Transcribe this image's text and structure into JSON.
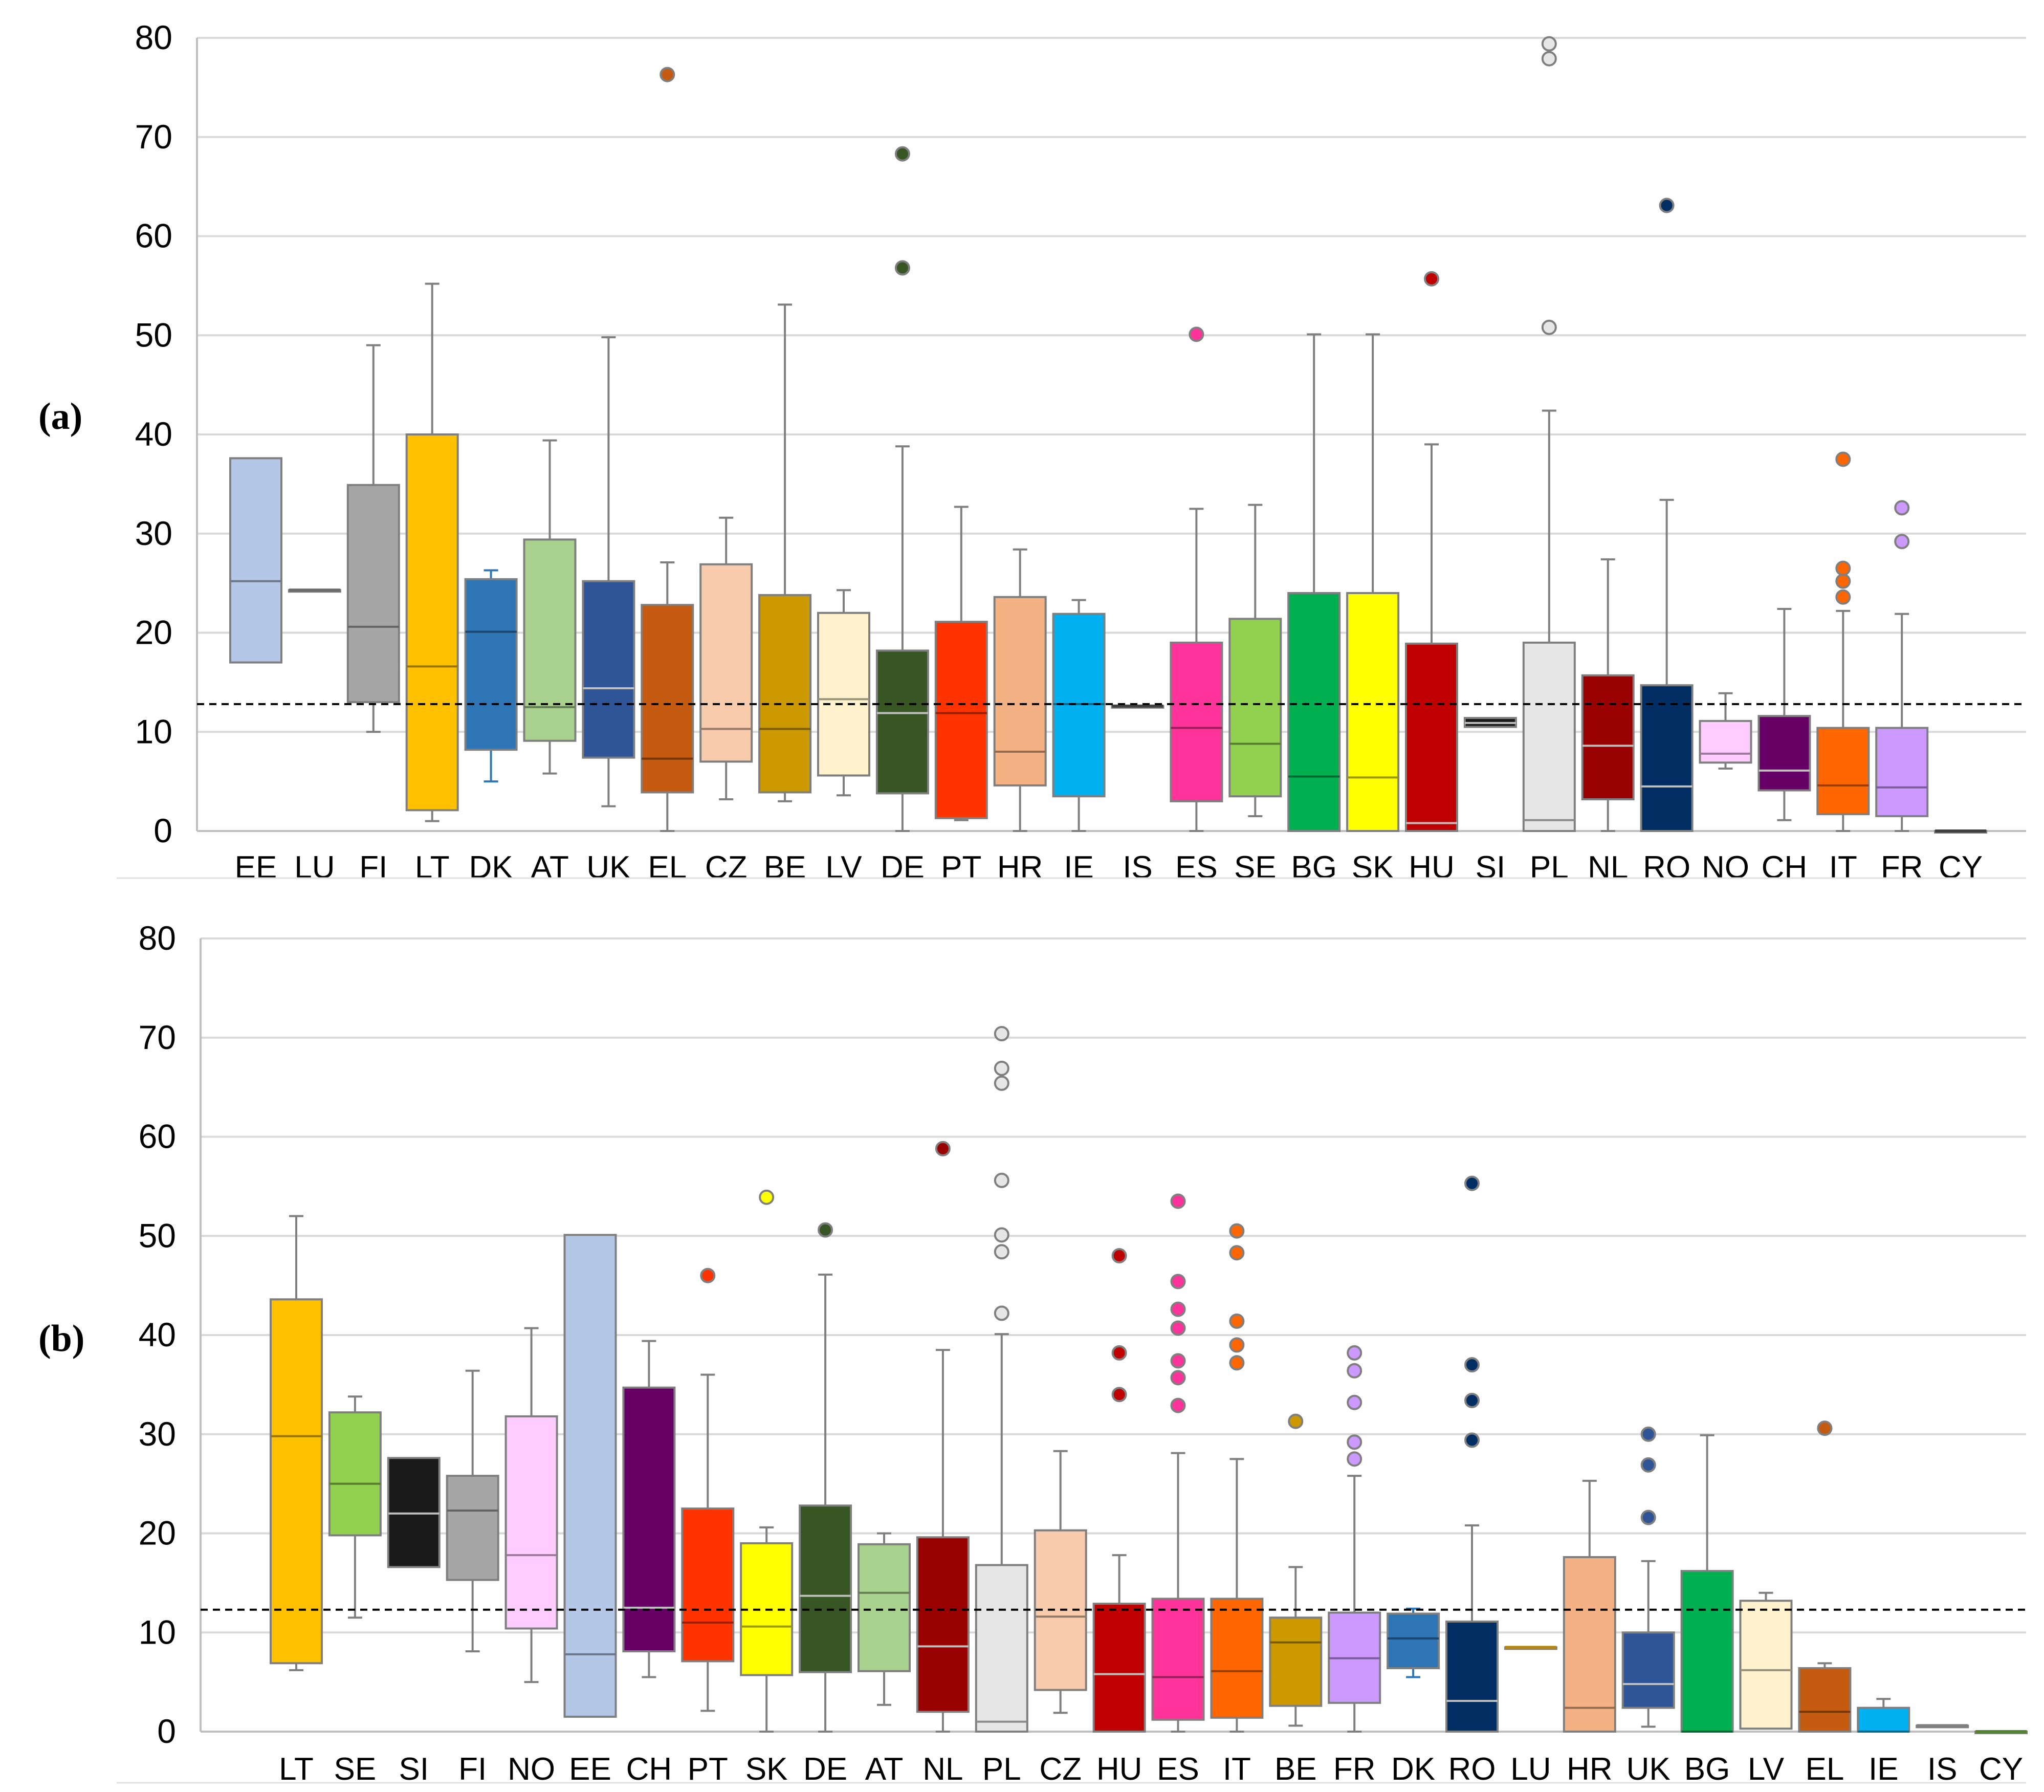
{
  "reference_line_style": "dashed black horizontal line",
  "chart_data": [
    {
      "type": "boxplot",
      "panel_label": "(a)",
      "ylim": [
        0,
        80
      ],
      "yticks": [
        0,
        10,
        20,
        30,
        40,
        50,
        60,
        70,
        80
      ],
      "ytick_labels": [
        "0",
        "10",
        "20",
        "30",
        "40",
        "50",
        "60",
        "70",
        "80"
      ],
      "reference_line": 12.8,
      "series": [
        {
          "label": "EE",
          "color": "#B4C7E7",
          "min": 17,
          "q1": 17,
          "median": 25.2,
          "q3": 37.6,
          "max": 37.6,
          "outliers": []
        },
        {
          "label": "LU",
          "color": "#6B6B6B",
          "min": 24.3,
          "q1": 24.3,
          "median": 24.3,
          "q3": 24.3,
          "max": 24.3,
          "outliers": []
        },
        {
          "label": "FI",
          "color": "#A6A6A6",
          "min": 10,
          "q1": 13,
          "median": 20.6,
          "q3": 34.9,
          "max": 49,
          "outliers": []
        },
        {
          "label": "LT",
          "color": "#FFC000",
          "min": 1,
          "q1": 2.1,
          "median": 16.6,
          "q3": 40,
          "max": 55.2,
          "outliers": []
        },
        {
          "label": "DK",
          "color": "#2E75B6",
          "min": 5,
          "q1": 8.2,
          "median": 20.1,
          "q3": 25.4,
          "max": 26.3,
          "outliers": []
        },
        {
          "label": "AT",
          "color": "#A9D18E",
          "min": 5.8,
          "q1": 9.1,
          "median": 12.5,
          "q3": 29.4,
          "max": 39.4,
          "outliers": []
        },
        {
          "label": "UK",
          "color": "#2F5597",
          "min": 2.5,
          "q1": 7.4,
          "median": 14.4,
          "q3": 25.2,
          "max": 49.8,
          "outliers": []
        },
        {
          "label": "EL",
          "color": "#C55A11",
          "min": 0,
          "q1": 3.9,
          "median": 7.3,
          "q3": 22.8,
          "max": 27.1,
          "outliers": [
            76.3
          ]
        },
        {
          "label": "CZ",
          "color": "#F8CBAD",
          "min": 3.2,
          "q1": 7,
          "median": 10.3,
          "q3": 26.9,
          "max": 31.6,
          "outliers": []
        },
        {
          "label": "BE",
          "color": "#CC9900",
          "min": 3,
          "q1": 3.9,
          "median": 10.3,
          "q3": 23.8,
          "max": 53.1,
          "outliers": []
        },
        {
          "label": "LV",
          "color": "#FFF2CC",
          "min": 3.6,
          "q1": 5.6,
          "median": 13.3,
          "q3": 22,
          "max": 24.3,
          "outliers": []
        },
        {
          "label": "DE",
          "color": "#375623",
          "min": 0,
          "q1": 3.8,
          "median": 11.9,
          "q3": 18.2,
          "max": 38.8,
          "outliers": [
            56.8,
            68.3
          ]
        },
        {
          "label": "PT",
          "color": "#FF3300",
          "min": 1.1,
          "q1": 1.3,
          "median": 11.9,
          "q3": 21.1,
          "max": 32.7,
          "outliers": []
        },
        {
          "label": "HR",
          "color": "#F4B183",
          "min": 0,
          "q1": 4.6,
          "median": 8,
          "q3": 23.6,
          "max": 28.4,
          "outliers": []
        },
        {
          "label": "IE",
          "color": "#00B0F0",
          "min": 0,
          "q1": 3.5,
          "median": 12.8,
          "q3": 21.9,
          "max": 23.3,
          "outliers": []
        },
        {
          "label": "IS",
          "color": "#404040",
          "min": 12.6,
          "q1": 12.6,
          "median": 12.6,
          "q3": 12.6,
          "max": 12.6,
          "outliers": []
        },
        {
          "label": "ES",
          "color": "#FF3399",
          "min": 0,
          "q1": 3,
          "median": 10.4,
          "q3": 19,
          "max": 32.5,
          "outliers": [
            50.1
          ]
        },
        {
          "label": "SE",
          "color": "#92D050",
          "min": 1.5,
          "q1": 3.5,
          "median": 8.8,
          "q3": 21.4,
          "max": 32.9,
          "outliers": []
        },
        {
          "label": "BG",
          "color": "#00B050",
          "min": 0,
          "q1": 0,
          "median": 5.5,
          "q3": 24,
          "max": 50.1,
          "outliers": []
        },
        {
          "label": "SK",
          "color": "#FFFF00",
          "min": 0,
          "q1": 0,
          "median": 5.4,
          "q3": 24,
          "max": 50.1,
          "outliers": []
        },
        {
          "label": "HU",
          "color": "#C00000",
          "min": 0,
          "q1": 0,
          "median": 0.8,
          "q3": 18.9,
          "max": 39,
          "outliers": [
            55.7
          ]
        },
        {
          "label": "SI",
          "color": "#1A1A1A",
          "min": 10.5,
          "q1": 10.5,
          "median": 10.9,
          "q3": 11.4,
          "max": 11.4,
          "outliers": []
        },
        {
          "label": "PL",
          "color": "#E7E6E6",
          "min": 0,
          "q1": 0,
          "median": 1.1,
          "q3": 19,
          "max": 42.4,
          "outliers": [
            50.8,
            77.9,
            79.4
          ]
        },
        {
          "label": "NL",
          "color": "#990000",
          "min": 0,
          "q1": 3.2,
          "median": 8.6,
          "q3": 15.7,
          "max": 27.4,
          "outliers": []
        },
        {
          "label": "RO",
          "color": "#002D62",
          "min": 0,
          "q1": 0,
          "median": 4.5,
          "q3": 14.7,
          "max": 33.4,
          "outliers": [
            63.1
          ]
        },
        {
          "label": "NO",
          "color": "#FFCCFF",
          "min": 6.3,
          "q1": 6.9,
          "median": 7.8,
          "q3": 11.1,
          "max": 13.9,
          "outliers": []
        },
        {
          "label": "CH",
          "color": "#660066",
          "min": 1.1,
          "q1": 4.1,
          "median": 6.1,
          "q3": 11.6,
          "max": 22.4,
          "outliers": []
        },
        {
          "label": "IT",
          "color": "#FF6600",
          "min": 0,
          "q1": 1.7,
          "median": 4.6,
          "q3": 10.4,
          "max": 22.2,
          "outliers": [
            23.6,
            25.2,
            26.5,
            37.5
          ]
        },
        {
          "label": "FR",
          "color": "#CC99FF",
          "min": 0,
          "q1": 1.5,
          "median": 4.4,
          "q3": 10.4,
          "max": 21.9,
          "outliers": [
            29.2,
            32.6
          ]
        },
        {
          "label": "CY",
          "color": "#404040",
          "min": 0,
          "q1": 0,
          "median": 0,
          "q3": 0,
          "max": 0,
          "outliers": []
        }
      ]
    },
    {
      "type": "boxplot",
      "panel_label": "(b)",
      "ylim": [
        0,
        80
      ],
      "yticks": [
        0,
        10,
        20,
        30,
        40,
        50,
        60,
        70,
        80
      ],
      "ytick_labels": [
        "0",
        "10",
        "20",
        "30",
        "40",
        "50",
        "60",
        "70",
        "80"
      ],
      "reference_line": 12.3,
      "series": [
        {
          "label": "LT",
          "color": "#FFC000",
          "min": 6.2,
          "q1": 6.9,
          "median": 29.8,
          "q3": 43.6,
          "max": 52,
          "outliers": []
        },
        {
          "label": "SE",
          "color": "#92D050",
          "min": 11.5,
          "q1": 19.8,
          "median": 25,
          "q3": 32.2,
          "max": 33.8,
          "outliers": []
        },
        {
          "label": "SI",
          "color": "#1A1A1A",
          "min": 16.6,
          "q1": 16.6,
          "median": 22,
          "q3": 27.6,
          "max": 27.6,
          "outliers": []
        },
        {
          "label": "FI",
          "color": "#A6A6A6",
          "min": 8.1,
          "q1": 15.3,
          "median": 22.3,
          "q3": 25.8,
          "max": 36.4,
          "outliers": []
        },
        {
          "label": "NO",
          "color": "#FFCCFF",
          "min": 5,
          "q1": 10.4,
          "median": 17.8,
          "q3": 31.8,
          "max": 40.7,
          "outliers": []
        },
        {
          "label": "EE",
          "color": "#B4C7E7",
          "min": 1.5,
          "q1": 1.5,
          "median": 7.8,
          "q3": 50.1,
          "max": 50.1,
          "outliers": []
        },
        {
          "label": "CH",
          "color": "#660066",
          "min": 5.5,
          "q1": 8.1,
          "median": 12.5,
          "q3": 34.7,
          "max": 39.4,
          "outliers": []
        },
        {
          "label": "PT",
          "color": "#FF3300",
          "min": 2.1,
          "q1": 7.1,
          "median": 11,
          "q3": 22.5,
          "max": 36,
          "outliers": [
            46
          ]
        },
        {
          "label": "SK",
          "color": "#FFFF00",
          "min": 0,
          "q1": 5.7,
          "median": 10.6,
          "q3": 19,
          "max": 20.6,
          "outliers": [
            53.9
          ]
        },
        {
          "label": "DE",
          "color": "#375623",
          "min": 0,
          "q1": 6,
          "median": 13.7,
          "q3": 22.8,
          "max": 46.1,
          "outliers": [
            50.6
          ]
        },
        {
          "label": "AT",
          "color": "#A9D18E",
          "min": 2.7,
          "q1": 6.1,
          "median": 14,
          "q3": 18.9,
          "max": 20,
          "outliers": []
        },
        {
          "label": "NL",
          "color": "#990000",
          "min": 0,
          "q1": 2,
          "median": 8.6,
          "q3": 19.6,
          "max": 38.5,
          "outliers": [
            58.8
          ]
        },
        {
          "label": "PL",
          "color": "#E7E6E6",
          "min": 0,
          "q1": 0,
          "median": 1,
          "q3": 16.8,
          "max": 40.1,
          "outliers": [
            42.2,
            48.4,
            50.1,
            55.6,
            65.4,
            66.9,
            70.4
          ]
        },
        {
          "label": "CZ",
          "color": "#F8CBAD",
          "min": 1.9,
          "q1": 4.2,
          "median": 11.6,
          "q3": 20.3,
          "max": 28.3,
          "outliers": []
        },
        {
          "label": "HU",
          "color": "#C00000",
          "min": 0,
          "q1": 0,
          "median": 5.8,
          "q3": 12.9,
          "max": 17.8,
          "outliers": [
            34,
            38.2,
            48
          ]
        },
        {
          "label": "ES",
          "color": "#FF3399",
          "min": 0,
          "q1": 1.2,
          "median": 5.5,
          "q3": 13.4,
          "max": 28.1,
          "outliers": [
            32.9,
            35.7,
            37.4,
            40.7,
            42.6,
            45.4,
            53.5
          ]
        },
        {
          "label": "IT",
          "color": "#FF6600",
          "min": 0,
          "q1": 1.4,
          "median": 6.1,
          "q3": 13.4,
          "max": 27.5,
          "outliers": [
            37.2,
            39,
            41.4,
            48.3,
            50.5
          ]
        },
        {
          "label": "BE",
          "color": "#CC9900",
          "min": 0.6,
          "q1": 2.6,
          "median": 9,
          "q3": 11.5,
          "max": 16.6,
          "outliers": [
            31.3
          ]
        },
        {
          "label": "FR",
          "color": "#CC99FF",
          "min": 0,
          "q1": 2.9,
          "median": 7.4,
          "q3": 12,
          "max": 25.8,
          "outliers": [
            27.5,
            29.2,
            33.2,
            36.4,
            38.2
          ]
        },
        {
          "label": "DK",
          "color": "#2E75B6",
          "min": 5.5,
          "q1": 6.4,
          "median": 9.4,
          "q3": 11.9,
          "max": 12.4,
          "outliers": []
        },
        {
          "label": "RO",
          "color": "#002D62",
          "min": 0,
          "q1": 0,
          "median": 3.1,
          "q3": 11.1,
          "max": 20.8,
          "outliers": [
            29.4,
            33.4,
            37,
            55.3
          ]
        },
        {
          "label": "LU",
          "color": "#B8860B",
          "min": 8.5,
          "q1": 8.5,
          "median": 8.5,
          "q3": 8.5,
          "max": 8.5,
          "outliers": []
        },
        {
          "label": "HR",
          "color": "#F4B183",
          "min": 0,
          "q1": 0,
          "median": 2.4,
          "q3": 17.6,
          "max": 25.3,
          "outliers": []
        },
        {
          "label": "UK",
          "color": "#2F5597",
          "min": 0.5,
          "q1": 2.4,
          "median": 4.8,
          "q3": 10,
          "max": 17.2,
          "outliers": [
            21.6,
            26.9,
            30
          ]
        },
        {
          "label": "BG",
          "color": "#00B050",
          "min": 0,
          "q1": 0,
          "median": 0,
          "q3": 16.2,
          "max": 29.9,
          "outliers": []
        },
        {
          "label": "LV",
          "color": "#FFF2CC",
          "min": 0.3,
          "q1": 0.3,
          "median": 6.2,
          "q3": 13.2,
          "max": 14,
          "outliers": []
        },
        {
          "label": "EL",
          "color": "#C55A11",
          "min": 0,
          "q1": 0,
          "median": 2,
          "q3": 6.4,
          "max": 6.9,
          "outliers": [
            30.6
          ]
        },
        {
          "label": "IE",
          "color": "#00B0F0",
          "min": 0,
          "q1": 0,
          "median": 0,
          "q3": 2.4,
          "max": 3.3,
          "outliers": []
        },
        {
          "label": "IS",
          "color": "#808080",
          "min": 0.6,
          "q1": 0.6,
          "median": 0.6,
          "q3": 0.6,
          "max": 0.6,
          "outliers": []
        },
        {
          "label": "CY",
          "color": "#548235",
          "min": 0,
          "q1": 0,
          "median": 0,
          "q3": 0,
          "max": 0,
          "outliers": []
        }
      ]
    }
  ]
}
